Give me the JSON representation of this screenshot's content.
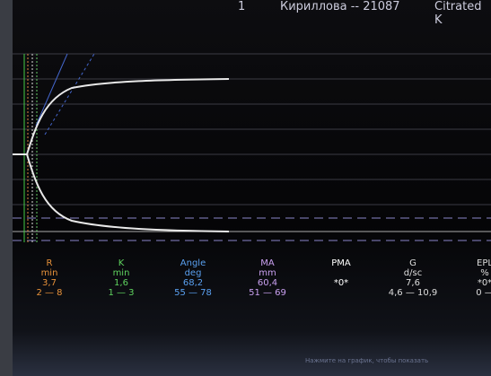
{
  "header": {
    "index": "1",
    "patient": "Кириллова -- 21087",
    "test": "Citrated K"
  },
  "parameters": [
    {
      "name": "R",
      "unit": "min",
      "value": "3,7",
      "range": "2 — 8"
    },
    {
      "name": "K",
      "unit": "min",
      "value": "1,6",
      "range": "1 — 3"
    },
    {
      "name": "Angle",
      "unit": "deg",
      "value": "68,2",
      "range": "55 — 78"
    },
    {
      "name": "MA",
      "unit": "mm",
      "value": "60,4",
      "range": "51 — 69"
    },
    {
      "name": "PMA",
      "unit": "",
      "value": "*0*",
      "range": ""
    },
    {
      "name": "G",
      "unit": "d/sc",
      "value": "7,6",
      "range": "4,6 — 10,9"
    },
    {
      "name": "EPL",
      "unit": "%",
      "value": "*0*",
      "range": "0 — "
    }
  ],
  "status": "Нажмите на график, чтобы показать"
}
